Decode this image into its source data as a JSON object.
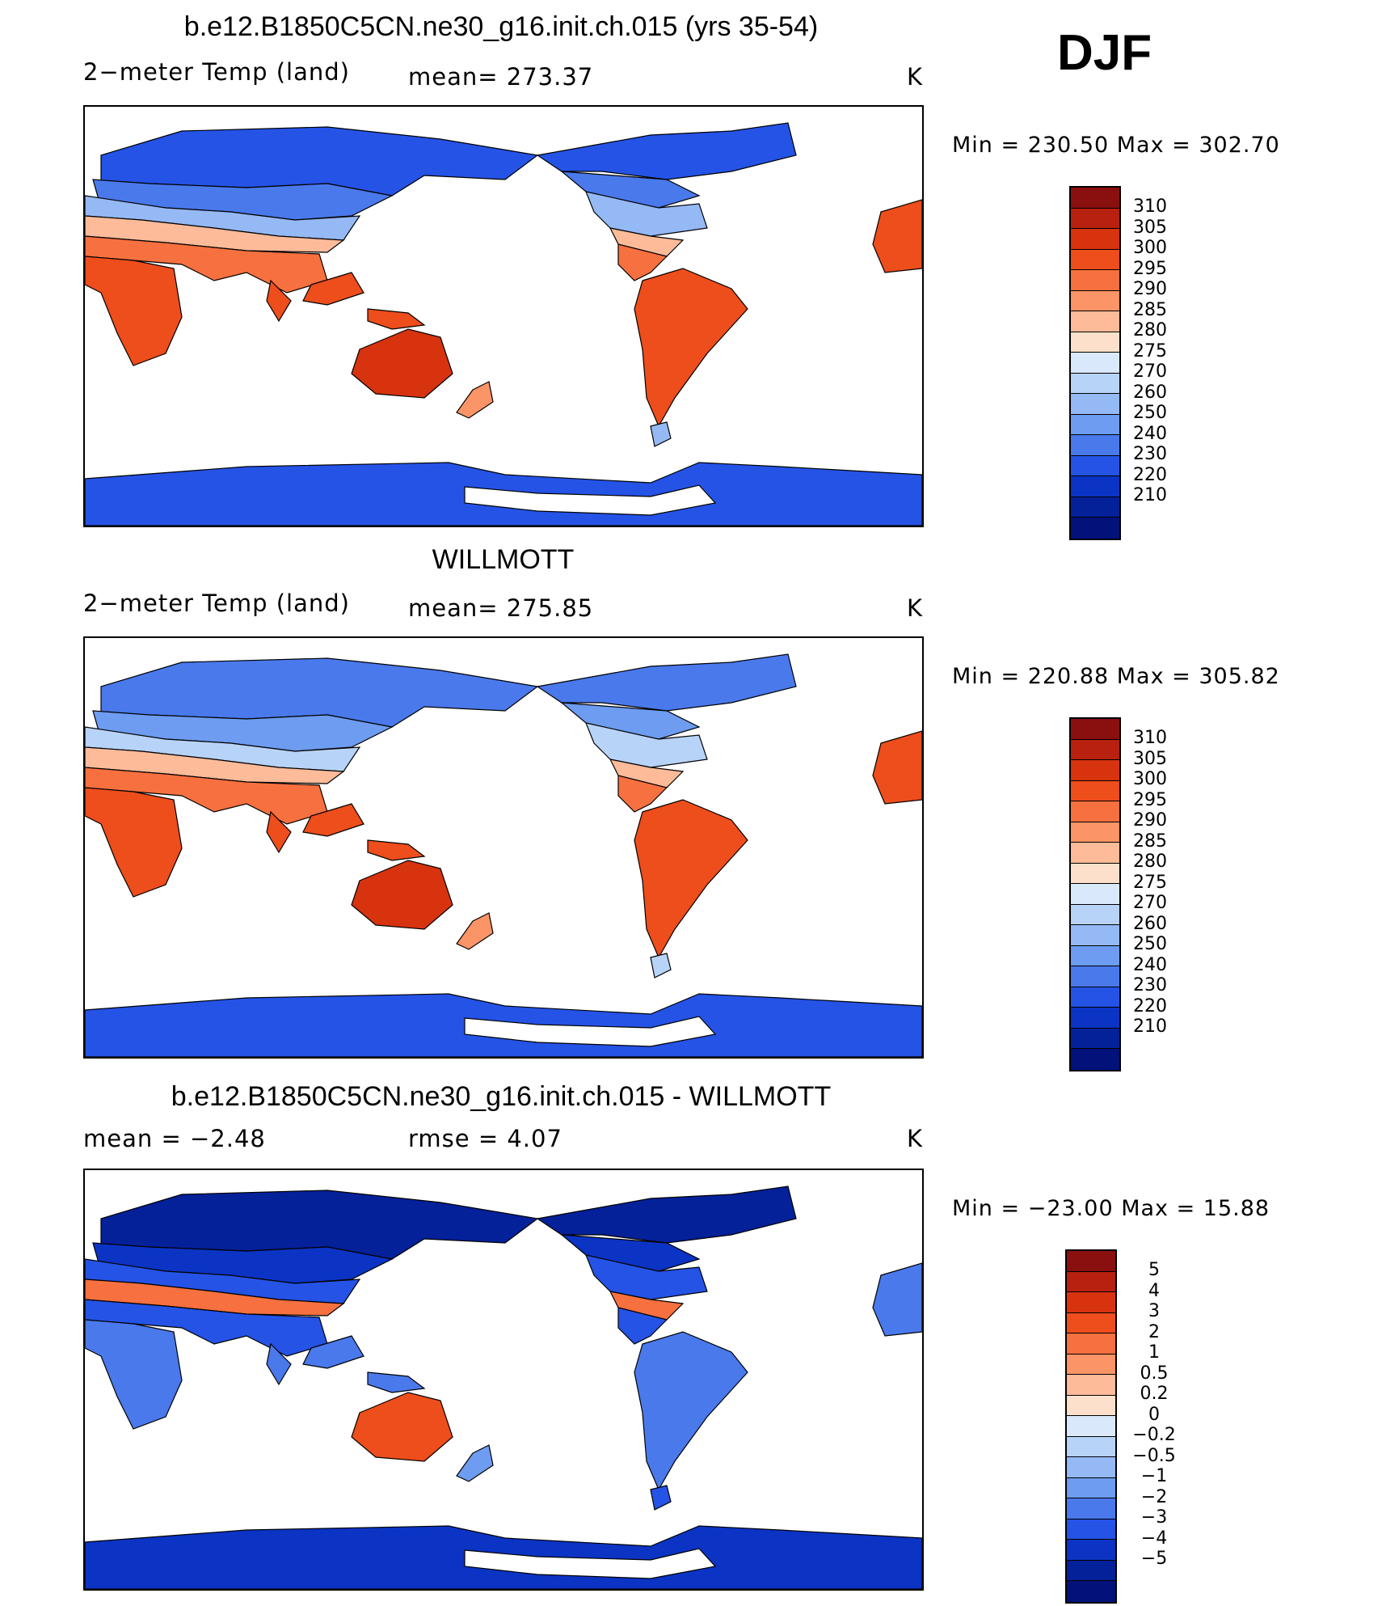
{
  "season": "DJF",
  "panels": [
    {
      "title": "b.e12.B1850C5CN.ne30_g16.init.ch.015 (yrs 35-54)",
      "left": "2−meter Temp (land)",
      "stat1": "mean=  273.37",
      "stat2": "",
      "units": "K",
      "minmax": "Min  =  230.50  Max  =  302.70"
    },
    {
      "title": "WILLMOTT",
      "left": "2−meter Temp (land)",
      "stat1": "mean=  275.85",
      "stat2": "",
      "units": "K",
      "minmax": "Min  =  220.88  Max  =  305.82"
    },
    {
      "title": "b.e12.B1850C5CN.ne30_g16.init.ch.015 - WILLMOTT",
      "left": "mean  =    −2.48",
      "stat1": "rmse  =     4.07",
      "stat2": "",
      "units": "K",
      "minmax": "Min  =  −23.00  Max  =    15.88"
    }
  ],
  "colorbars": {
    "temp": {
      "colors": [
        "#8a0f0f",
        "#b8200f",
        "#d7330f",
        "#ee4d1c",
        "#f7703f",
        "#fb9466",
        "#fdbb9a",
        "#fde0cb",
        "#d9e9fb",
        "#b8d3f8",
        "#95b9f5",
        "#6d9cf0",
        "#4a79ec",
        "#2553e6",
        "#0b34c4",
        "#04219a",
        "#02127a"
      ],
      "labels": [
        "310",
        "305",
        "300",
        "295",
        "290",
        "285",
        "280",
        "275",
        "270",
        "260",
        "250",
        "240",
        "230",
        "220",
        "210"
      ]
    },
    "diff": {
      "colors": [
        "#8a0f0f",
        "#b8200f",
        "#d7330f",
        "#ee4d1c",
        "#f7703f",
        "#fb9466",
        "#fdbb9a",
        "#fde0cb",
        "#d9e9fb",
        "#b8d3f8",
        "#95b9f5",
        "#6d9cf0",
        "#4a79ec",
        "#2553e6",
        "#0b34c4",
        "#04219a",
        "#02127a"
      ],
      "labels": [
        "5",
        "4",
        "3",
        "2",
        "1",
        "0.5",
        "0.2",
        "0",
        "−0.2",
        "−0.5",
        "−1",
        "−2",
        "−3",
        "−4",
        "−5"
      ]
    }
  },
  "map_colors": {
    "panel1": {
      "tropics": "#ee4d1c",
      "subtropics": "#f7703f",
      "warm_mid": "#fb9466",
      "mild": "#fdbb9a",
      "cool": "#95b9f5",
      "cold": "#4a79ec",
      "frigid": "#2553e6",
      "antarctica": "#2553e6",
      "hot": "#d7330f"
    },
    "panel2": {
      "tropics": "#ee4d1c",
      "subtropics": "#f7703f",
      "warm_mid": "#fb9466",
      "mild": "#fdbb9a",
      "cool": "#b8d3f8",
      "cold": "#6d9cf0",
      "frigid": "#4a79ec",
      "antarctica": "#2553e6",
      "hot": "#d7330f"
    },
    "panel3": {
      "tropics": "#4a79ec",
      "subtropics": "#2553e6",
      "warm_mid": "#6d9cf0",
      "mild": "#f7703f",
      "cool": "#2553e6",
      "cold": "#0b34c4",
      "frigid": "#04219a",
      "antarctica": "#0b34c4",
      "hot": "#ee4d1c"
    }
  }
}
